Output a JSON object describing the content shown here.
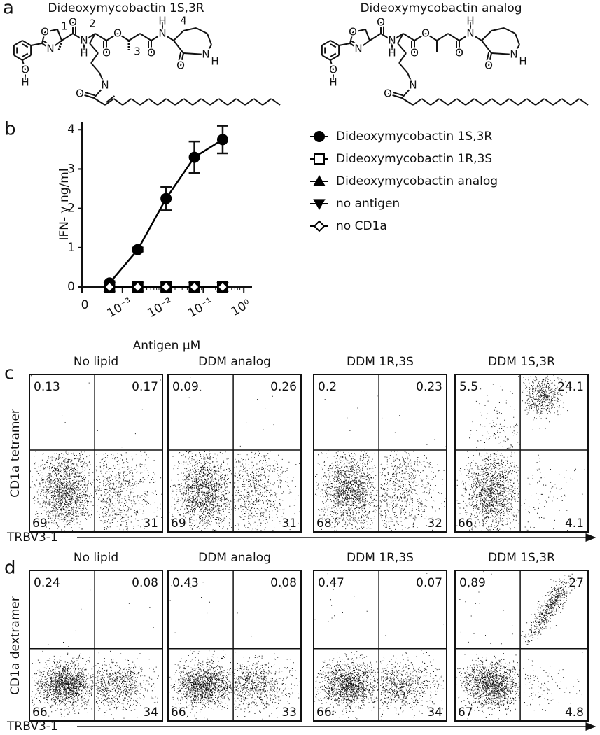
{
  "panel_labels": [
    "a",
    "b",
    "c",
    "d"
  ],
  "structures": [
    {
      "title": "Dideoxymycobactin 1S,3R",
      "atoms": [
        "O",
        "N",
        "O",
        "N",
        "H",
        "O",
        "O",
        "O",
        "N",
        "H",
        "O",
        "N",
        "H",
        "O",
        "H",
        "N",
        "O"
      ],
      "numbers": [
        "1",
        "2",
        "3",
        "4"
      ]
    },
    {
      "title": "Dideoxymycobactin analog",
      "atoms": [
        "O",
        "N",
        "O",
        "N",
        "H",
        "O",
        "O",
        "O",
        "N",
        "H",
        "O",
        "N",
        "H",
        "O",
        "H",
        "N",
        "O"
      ]
    }
  ],
  "chart_data": {
    "type": "line",
    "x": [
      0.00048,
      0.0024,
      0.012,
      0.06,
      0.3
    ],
    "xscale": "log",
    "xlim": [
      0.0001,
      1.6
    ],
    "xticks": [
      0,
      {
        "value": 0.001,
        "label": "10⁻³"
      },
      {
        "value": 0.01,
        "label": "10⁻²"
      },
      {
        "value": 0.1,
        "label": "10⁻¹"
      },
      {
        "value": 1,
        "label": "10⁰"
      }
    ],
    "ylim": [
      0,
      4.2
    ],
    "yticks": [
      0,
      1,
      2,
      3,
      4
    ],
    "x_label": "Antigen μM",
    "y_label": "IFN- γ ng/ml",
    "legend": "right",
    "series": [
      {
        "name": "Dideoxymycobactin 1S,3R",
        "marker": "circle",
        "filled": true,
        "color": "#000000",
        "values": [
          0.1,
          0.95,
          2.25,
          3.3,
          3.75
        ],
        "errors": [
          0.05,
          0.05,
          0.3,
          0.4,
          0.35
        ]
      },
      {
        "name": "Dideoxymycobactin 1R,3S",
        "marker": "square",
        "filled": false,
        "color": "#000000",
        "values": [
          0,
          0,
          0,
          0,
          0
        ]
      },
      {
        "name": "Dideoxymycobactin analog",
        "marker": "triangle",
        "filled": true,
        "color": "#000000",
        "values": [
          0,
          0,
          0,
          0,
          0
        ]
      },
      {
        "name": "no antigen",
        "marker": "triangle-down",
        "filled": true,
        "color": "#000000",
        "values": [
          0,
          0,
          0,
          0,
          0
        ]
      },
      {
        "name": "no CD1a",
        "marker": "diamond",
        "filled": false,
        "color": "#000000",
        "values": [
          0,
          0,
          0,
          0,
          0
        ]
      }
    ]
  },
  "flow": [
    {
      "y_label": "CD1a tetramer",
      "x_label": "TRBV3-1",
      "plots": [
        {
          "title": "No lipid",
          "quadrants": [
            0.13,
            0.17,
            69,
            31
          ]
        },
        {
          "title": "DDM analog",
          "quadrants": [
            0.09,
            0.26,
            69,
            31
          ]
        },
        {
          "title": "DDM 1R,3S",
          "quadrants": [
            0.2,
            0.23,
            68,
            32
          ]
        },
        {
          "title": "DDM 1S,3R",
          "quadrants": [
            5.5,
            24.1,
            66,
            4.1
          ]
        }
      ]
    },
    {
      "y_label": "CD1a dextramer",
      "x_label": "TRBV3-1",
      "plots": [
        {
          "title": "No lipid",
          "quadrants": [
            0.24,
            0.08,
            66,
            34
          ]
        },
        {
          "title": "DDM analog",
          "quadrants": [
            0.43,
            0.08,
            66,
            33
          ]
        },
        {
          "title": "DDM 1R,3S",
          "quadrants": [
            0.47,
            0.07,
            66,
            34
          ]
        },
        {
          "title": "DDM 1S,3R",
          "quadrants": [
            0.89,
            27,
            67,
            4.8
          ]
        }
      ]
    }
  ]
}
